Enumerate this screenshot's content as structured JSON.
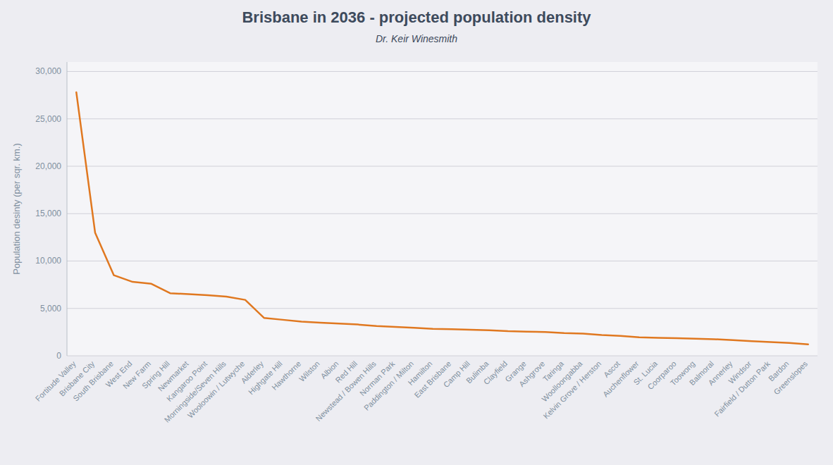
{
  "chart_data": {
    "type": "line",
    "title": "Brisbane in 2036 - projected population density",
    "subtitle": "Dr. Keir Winesmith",
    "ylabel": "Population desinty (per sqr. km.)",
    "color": "#e07820",
    "categories": [
      "Fortitude Valley",
      "Brisbane City",
      "South Brisbane",
      "West End",
      "New Farm",
      "Spring Hill",
      "Newmarket",
      "Kangaroo Point",
      "Morningside/Seven Hills",
      "Wooloowin / Lutwyche",
      "Alderley",
      "Highgate Hill",
      "Hawthorne",
      "Wilston",
      "Albion",
      "Red Hill",
      "Newstead / Bowen Hills",
      "Norman Park",
      "Paddington / Milton",
      "Hamilton",
      "East Brisbane",
      "Camp Hill",
      "Bulimba",
      "Clayfield",
      "Grange",
      "Ashgrove",
      "Taringa",
      "Woolloongabba",
      "Kelvin Grove / Herston",
      "Ascot",
      "Auchenflower",
      "St. Lucia",
      "Coorparoo",
      "Toowong",
      "Balmoral",
      "Annerley",
      "Windsor",
      "Fairfield / Dutton Park",
      "Bardon",
      "Greenslopes"
    ],
    "values": [
      27800,
      13000,
      8500,
      7800,
      7600,
      6600,
      6500,
      6400,
      6250,
      5900,
      4000,
      3800,
      3600,
      3500,
      3400,
      3300,
      3150,
      3050,
      2950,
      2850,
      2800,
      2750,
      2700,
      2600,
      2550,
      2500,
      2400,
      2350,
      2200,
      2100,
      1950,
      1900,
      1850,
      1800,
      1750,
      1650,
      1550,
      1450,
      1350,
      1200
    ],
    "ylim": [
      0,
      31000
    ],
    "yticks": [
      0,
      {
        "value": 5000,
        "label": "5,000"
      },
      {
        "value": 10000,
        "label": "10,000"
      },
      {
        "value": 15000,
        "label": "15,000"
      },
      {
        "value": 20000,
        "label": "20,000"
      },
      {
        "value": 25000,
        "label": "25,000"
      },
      {
        "value": 30000,
        "label": "30,000"
      }
    ],
    "grid": true
  }
}
